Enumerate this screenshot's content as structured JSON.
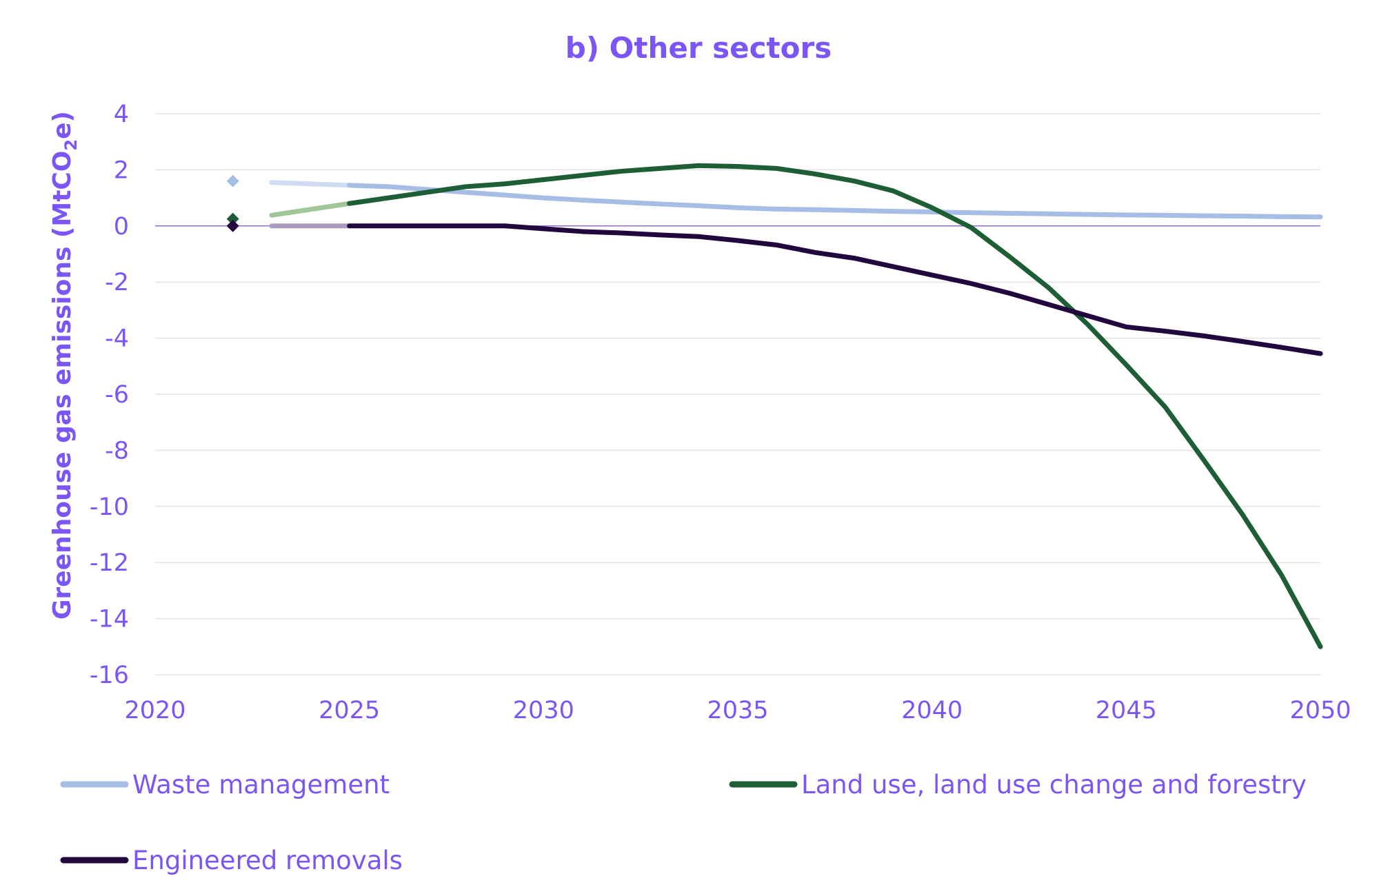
{
  "chart_data": {
    "type": "line",
    "title": "b) Other sectors",
    "xlabel": "",
    "ylabel": "Greenhouse gas emissions (MtCO",
    "ylabel_sub": "2",
    "ylabel_suffix": "e)",
    "xlim": [
      2020,
      2050
    ],
    "ylim": [
      -16,
      4
    ],
    "x_ticks": [
      2020,
      2025,
      2030,
      2035,
      2040,
      2045,
      2050
    ],
    "y_ticks": [
      4,
      2,
      0,
      -2,
      -4,
      -6,
      -8,
      -10,
      -12,
      -14,
      -16
    ],
    "grid": true,
    "colors": {
      "text": "#7b55f5",
      "grid": "#e3e3e3",
      "zero_line": "#8f6ad8"
    },
    "series": [
      {
        "name": "Waste management",
        "color": "#a6bee6",
        "pale_color": "#cfdcf2",
        "marker": {
          "x": 2022,
          "y": 1.6
        },
        "pale": {
          "x": [
            2023,
            2025
          ],
          "y": [
            1.55,
            1.45
          ]
        },
        "x": [
          2025,
          2026,
          2027,
          2028,
          2029,
          2030,
          2031,
          2032,
          2033,
          2034,
          2035,
          2036,
          2037,
          2038,
          2039,
          2040,
          2041,
          2042,
          2043,
          2044,
          2045,
          2046,
          2047,
          2048,
          2049,
          2050
        ],
        "y": [
          1.45,
          1.4,
          1.3,
          1.2,
          1.1,
          1.0,
          0.92,
          0.85,
          0.78,
          0.72,
          0.65,
          0.6,
          0.58,
          0.55,
          0.52,
          0.5,
          0.47,
          0.45,
          0.43,
          0.41,
          0.39,
          0.38,
          0.36,
          0.35,
          0.33,
          0.32
        ]
      },
      {
        "name": "Land use, land use change and forestry",
        "color": "#1d5e34",
        "pale_color": "#9fc798",
        "marker": {
          "x": 2022,
          "y": 0.25
        },
        "pale": {
          "x": [
            2023,
            2025
          ],
          "y": [
            0.38,
            0.8
          ]
        },
        "x": [
          2025,
          2026,
          2027,
          2028,
          2029,
          2030,
          2031,
          2032,
          2033,
          2034,
          2035,
          2036,
          2037,
          2038,
          2039,
          2040,
          2041,
          2042,
          2043,
          2044,
          2045,
          2046,
          2047,
          2048,
          2049,
          2050
        ],
        "y": [
          0.8,
          1.0,
          1.2,
          1.4,
          1.5,
          1.65,
          1.8,
          1.95,
          2.05,
          2.15,
          2.12,
          2.05,
          1.85,
          1.6,
          1.25,
          0.65,
          -0.05,
          -1.1,
          -2.2,
          -3.5,
          -4.95,
          -6.45,
          -8.35,
          -10.3,
          -12.45,
          -15.0
        ]
      },
      {
        "name": "Engineered removals",
        "color": "#22073f",
        "pale_color": "#a99cc0",
        "marker": {
          "x": 2022,
          "y": 0.0
        },
        "pale": {
          "x": [
            2023,
            2025
          ],
          "y": [
            0.0,
            0.0
          ]
        },
        "x": [
          2025,
          2026,
          2027,
          2028,
          2029,
          2030,
          2031,
          2032,
          2033,
          2034,
          2035,
          2036,
          2037,
          2038,
          2039,
          2040,
          2041,
          2042,
          2043,
          2044,
          2045,
          2046,
          2047,
          2048,
          2049,
          2050
        ],
        "y": [
          0.0,
          0.0,
          0.0,
          0.0,
          0.0,
          -0.1,
          -0.2,
          -0.25,
          -0.32,
          -0.38,
          -0.52,
          -0.68,
          -0.95,
          -1.15,
          -1.45,
          -1.75,
          -2.05,
          -2.4,
          -2.8,
          -3.2,
          -3.6,
          -3.75,
          -3.92,
          -4.12,
          -4.33,
          -4.55
        ]
      }
    ]
  }
}
